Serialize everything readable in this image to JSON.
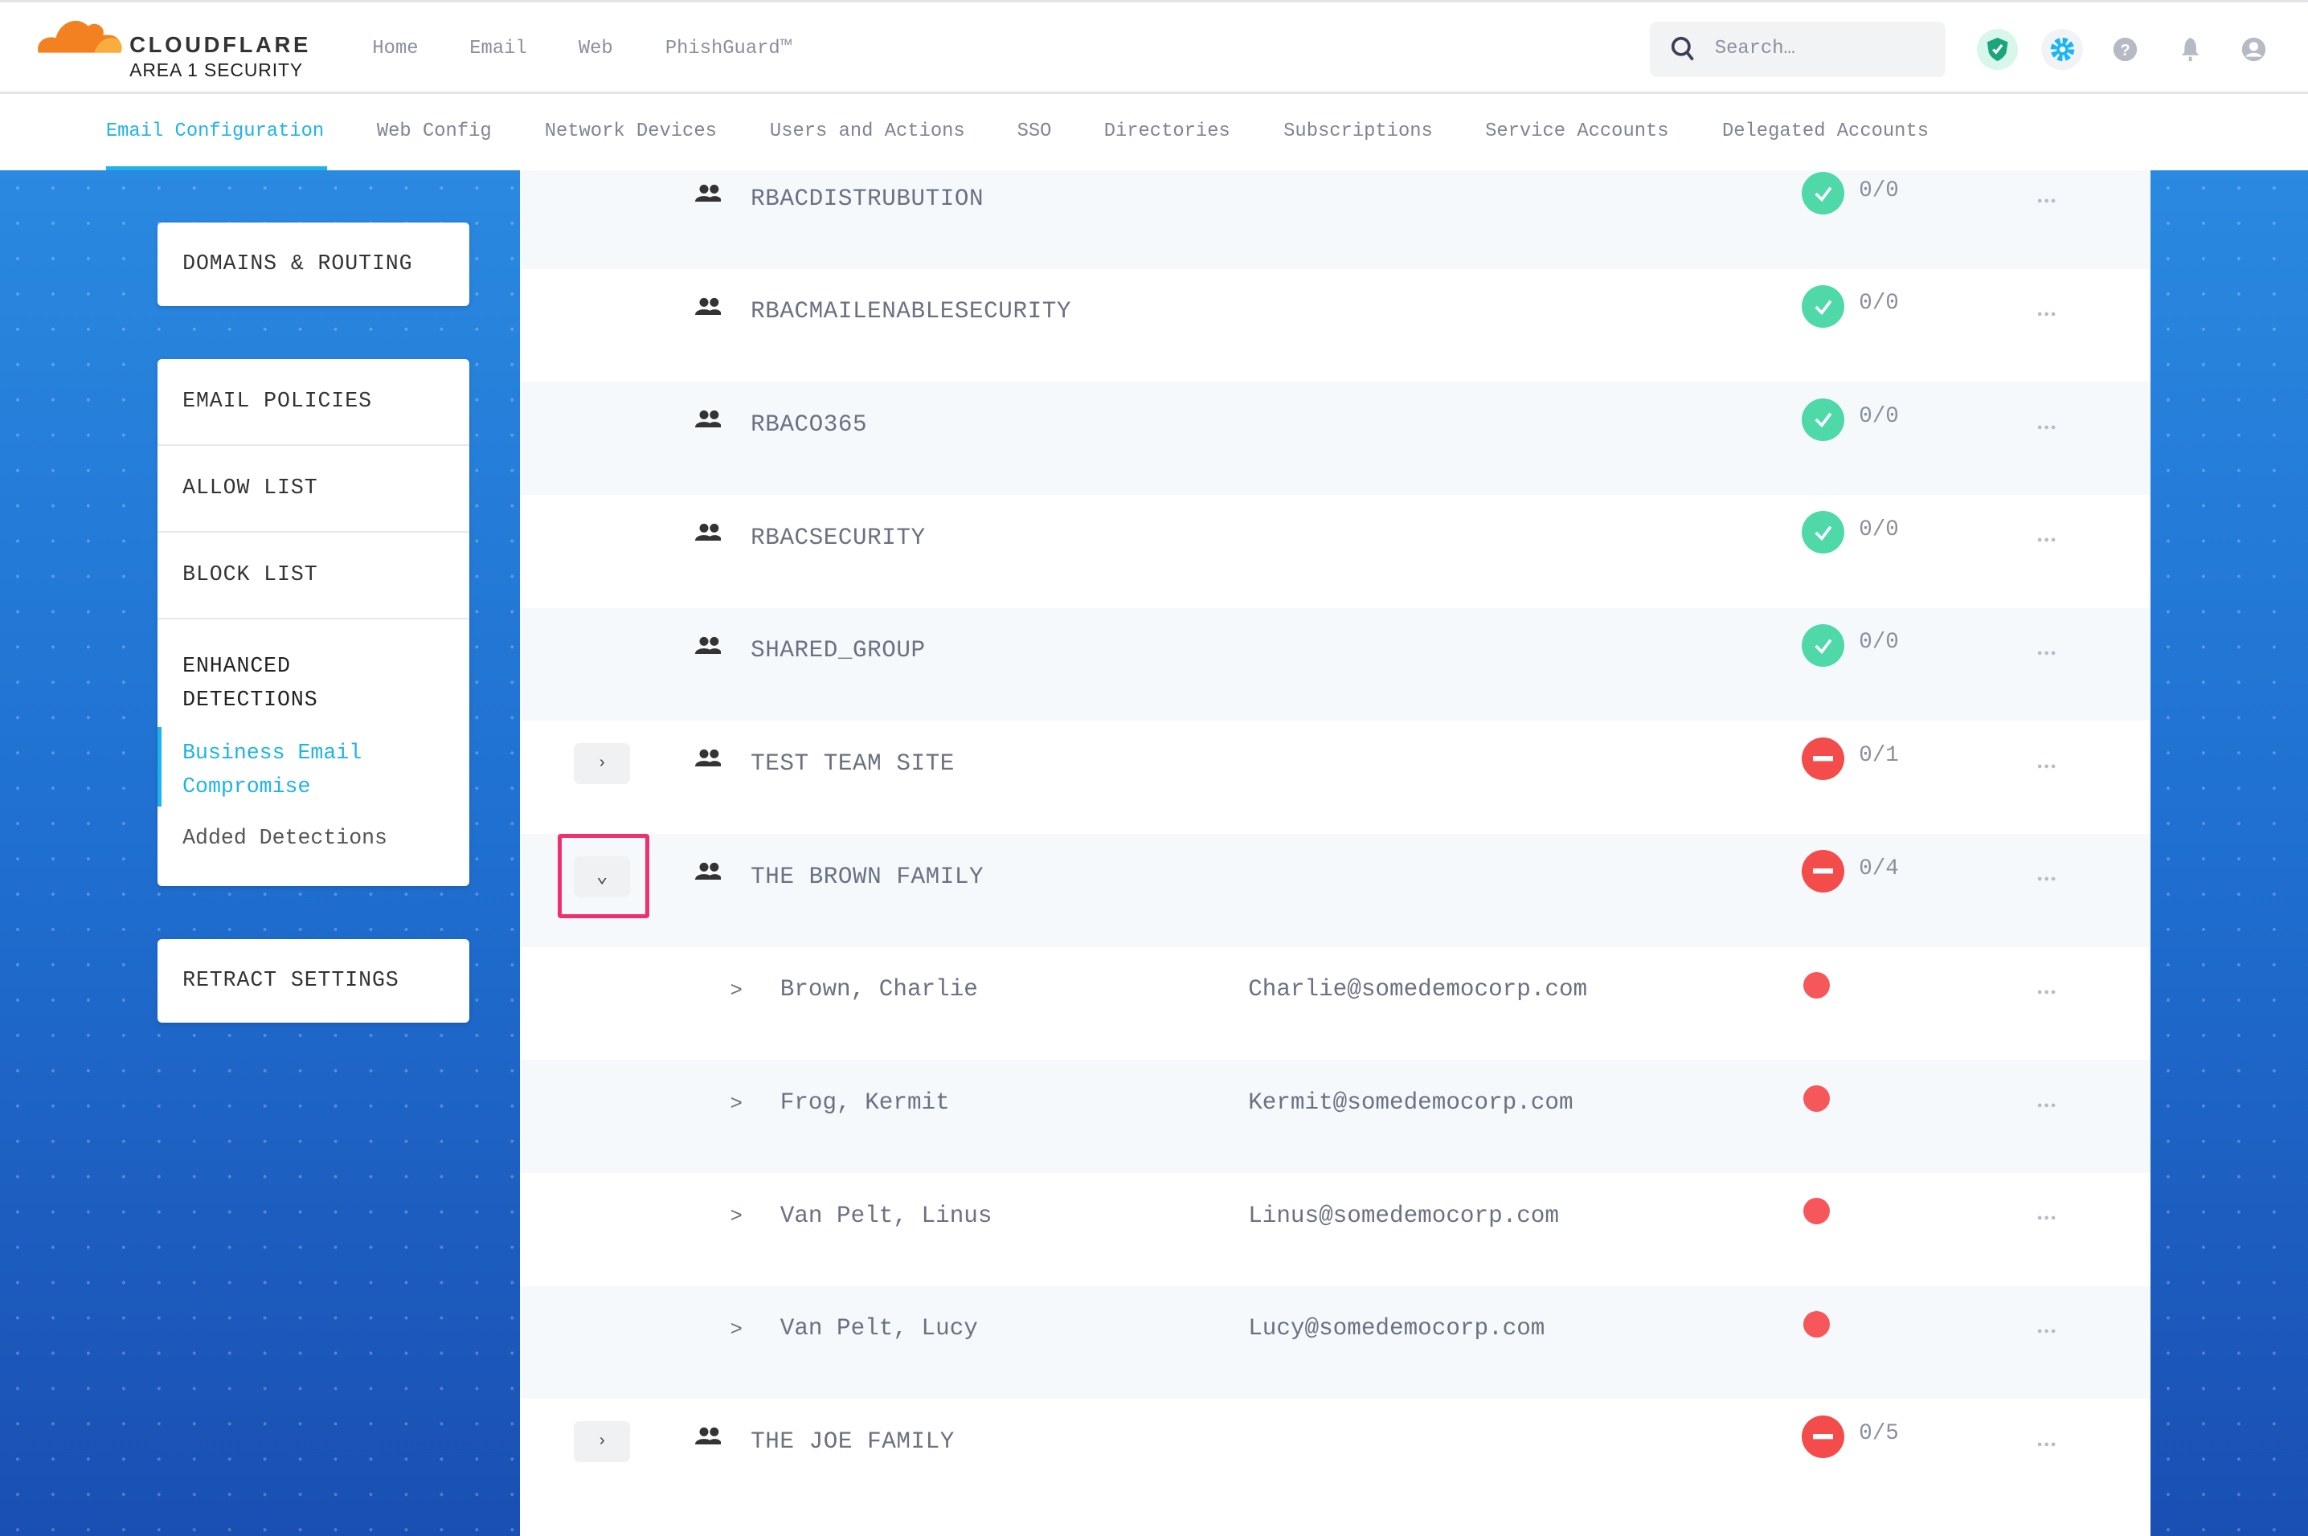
{
  "brand": {
    "name": "CLOUDFLARE",
    "sub": "AREA 1 SECURITY"
  },
  "topnav": [
    "Home",
    "Email",
    "Web",
    "PhishGuard™"
  ],
  "search": {
    "placeholder": "Search…"
  },
  "header_icons": [
    "shield-check-icon",
    "gear-icon",
    "help-icon",
    "bell-icon",
    "user-icon"
  ],
  "tabs": [
    "Email Configuration",
    "Web Config",
    "Network Devices",
    "Users and Actions",
    "SSO",
    "Directories",
    "Subscriptions",
    "Service Accounts",
    "Delegated Accounts"
  ],
  "active_tab": "Email Configuration",
  "sidebar": {
    "domains": "DOMAINS & ROUTING",
    "policies": "EMAIL POLICIES",
    "allow": "ALLOW LIST",
    "block": "BLOCK LIST",
    "enhanced1": "ENHANCED",
    "enhanced2": "DETECTIONS",
    "bec1": "Business Email",
    "bec2": "Compromise",
    "added": "Added Detections",
    "retract": "RETRACT SETTINGS"
  },
  "colors": {
    "accent": "#1fb3e8",
    "ok": "#4fd8a8",
    "error": "#f44b4b",
    "highlight": "#f0306a"
  },
  "rows": [
    {
      "type": "group",
      "name": "RBACDISTRUBUTION",
      "status": "ok",
      "count": "0/0"
    },
    {
      "type": "group",
      "name": "RBACMAILENABLESECURITY",
      "status": "ok",
      "count": "0/0"
    },
    {
      "type": "group",
      "name": "RBACO365",
      "status": "ok",
      "count": "0/0"
    },
    {
      "type": "group",
      "name": "RBACSECURITY",
      "status": "ok",
      "count": "0/0"
    },
    {
      "type": "group",
      "name": "SHARED_GROUP",
      "status": "ok",
      "count": "0/0"
    },
    {
      "type": "group",
      "name": "TEST TEAM SITE",
      "status": "error",
      "count": "0/1",
      "expandable": true,
      "expanded": false
    },
    {
      "type": "group",
      "name": "THE BROWN FAMILY",
      "status": "error",
      "count": "0/4",
      "expandable": true,
      "expanded": true
    },
    {
      "type": "member",
      "name": "Brown, Charlie",
      "email": "Charlie@somedemocorp.com",
      "status": "error"
    },
    {
      "type": "member",
      "name": "Frog, Kermit",
      "email": "Kermit@somedemocorp.com",
      "status": "error"
    },
    {
      "type": "member",
      "name": "Van Pelt, Linus",
      "email": "Linus@somedemocorp.com",
      "status": "error"
    },
    {
      "type": "member",
      "name": "Van Pelt, Lucy",
      "email": "Lucy@somedemocorp.com",
      "status": "error"
    },
    {
      "type": "group",
      "name": "THE JOE FAMILY",
      "status": "error",
      "count": "0/5",
      "expandable": true,
      "expanded": false
    }
  ]
}
